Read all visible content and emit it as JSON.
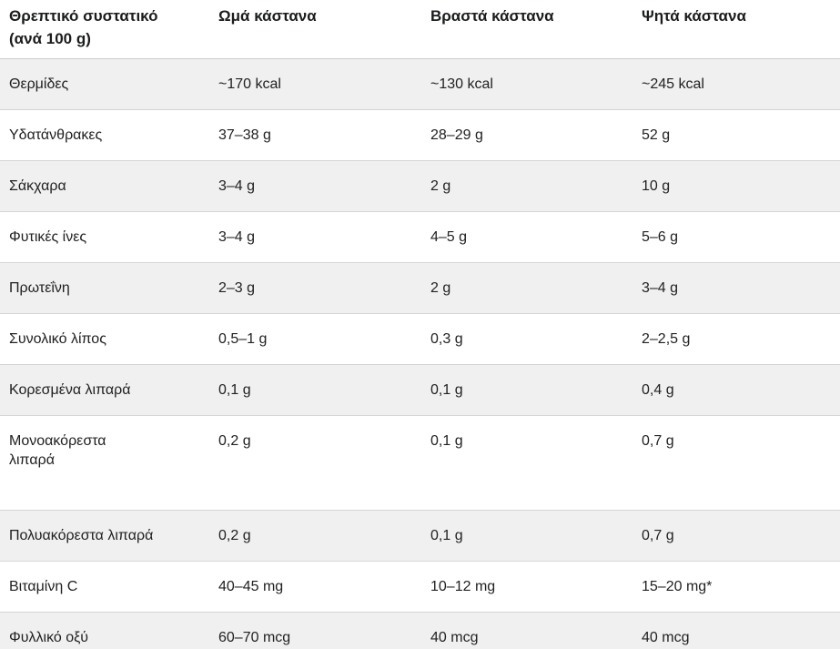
{
  "table": {
    "header": {
      "nutrient_line1": "Θρεπτικό συστατικό",
      "nutrient_line2": "(ανά 100 g)",
      "raw": "Ωμά κάστανα",
      "boiled": "Βραστά κάστανα",
      "roasted": "Ψητά κάστανα"
    },
    "rows": [
      {
        "nutrient": "Θερμίδες",
        "raw": "~170 kcal",
        "boiled": "~130 kcal",
        "roasted": "~245 kcal"
      },
      {
        "nutrient": "Υδατάνθρακες",
        "raw": "37–38 g",
        "boiled": "28–29 g",
        "roasted": "52 g"
      },
      {
        "nutrient": "Σάκχαρα",
        "raw": "3–4 g",
        "boiled": "2 g",
        "roasted": "10 g"
      },
      {
        "nutrient": "Φυτικές ίνες",
        "raw": "3–4 g",
        "boiled": "4–5 g",
        "roasted": "5–6 g"
      },
      {
        "nutrient": "Πρωτεΐνη",
        "raw": "2–3 g",
        "boiled": "2 g",
        "roasted": "3–4 g"
      },
      {
        "nutrient": "Συνολικό λίπος",
        "raw": "0,5–1 g",
        "boiled": "0,3 g",
        "roasted": "2–2,5 g"
      },
      {
        "nutrient": "Κορεσμένα λιπαρά",
        "raw": "0,1 g",
        "boiled": "0,1 g",
        "roasted": "0,4 g"
      },
      {
        "nutrient": "Μονοακόρεστα λιπαρά",
        "raw": "0,2 g",
        "boiled": "0,1 g",
        "roasted": "0,7 g"
      },
      {
        "nutrient": "Πολυακόρεστα λιπαρά",
        "raw": "0,2 g",
        "boiled": "0,1 g",
        "roasted": "0,7 g"
      },
      {
        "nutrient": "Βιταμίνη C",
        "raw": "40–45 mg",
        "boiled": "10–12 mg",
        "roasted": "15–20 mg*"
      },
      {
        "nutrient": "Φυλλικό οξύ",
        "raw": "60–70 mcg",
        "boiled": "40 mcg",
        "roasted": "40 mcg"
      }
    ],
    "colors": {
      "zebra_row_bg": "#f0f0f0",
      "row_border": "#d5d5d5",
      "header_border": "#cccccc",
      "text": "#202122"
    }
  }
}
